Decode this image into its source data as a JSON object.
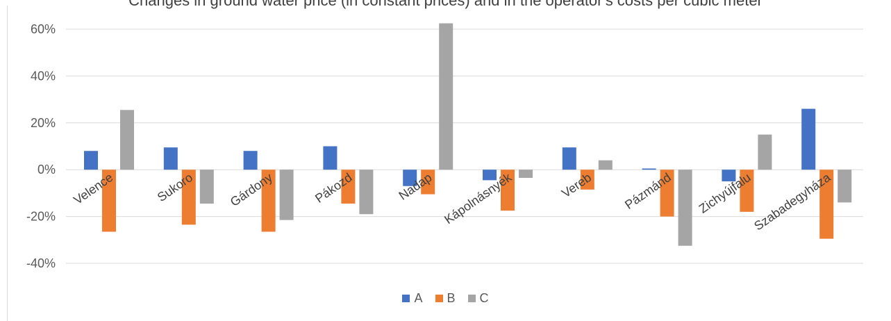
{
  "chart_data": {
    "type": "bar",
    "title": "Changes in ground water price (in constant prices) and in the operator's costs per cubic meter",
    "xlabel": "",
    "ylabel": "",
    "ylim": [
      -40,
      60
    ],
    "y_ticks": [
      "60%",
      "40%",
      "20%",
      "0%",
      "-20%",
      "-40%"
    ],
    "y_tick_values": [
      60,
      40,
      20,
      0,
      -20,
      -40
    ],
    "grid": true,
    "legend_position": "bottom",
    "categories": [
      "Velence",
      "Sukoro",
      "Gárdony",
      "Pákozd",
      "Nadap",
      "Kápolnásnyék",
      "Vereb",
      "Pázmánd",
      "Zichyújfalu",
      "Szabadegyháza"
    ],
    "series": [
      {
        "name": "A",
        "color": "#4472C4",
        "values": [
          8,
          9.5,
          8,
          10,
          -7,
          -4.5,
          9.5,
          0.5,
          -5,
          26
        ]
      },
      {
        "name": "B",
        "color": "#ED7D31",
        "values": [
          -26.5,
          -23.5,
          -26.5,
          -14.5,
          -10.5,
          -17.5,
          -8.5,
          -20,
          -18,
          -29.5
        ]
      },
      {
        "name": "C",
        "color": "#A5A5A5",
        "values": [
          25.5,
          -14.5,
          -21.5,
          -19,
          62.5,
          -3.5,
          4,
          -32.5,
          15,
          -14
        ]
      }
    ]
  }
}
